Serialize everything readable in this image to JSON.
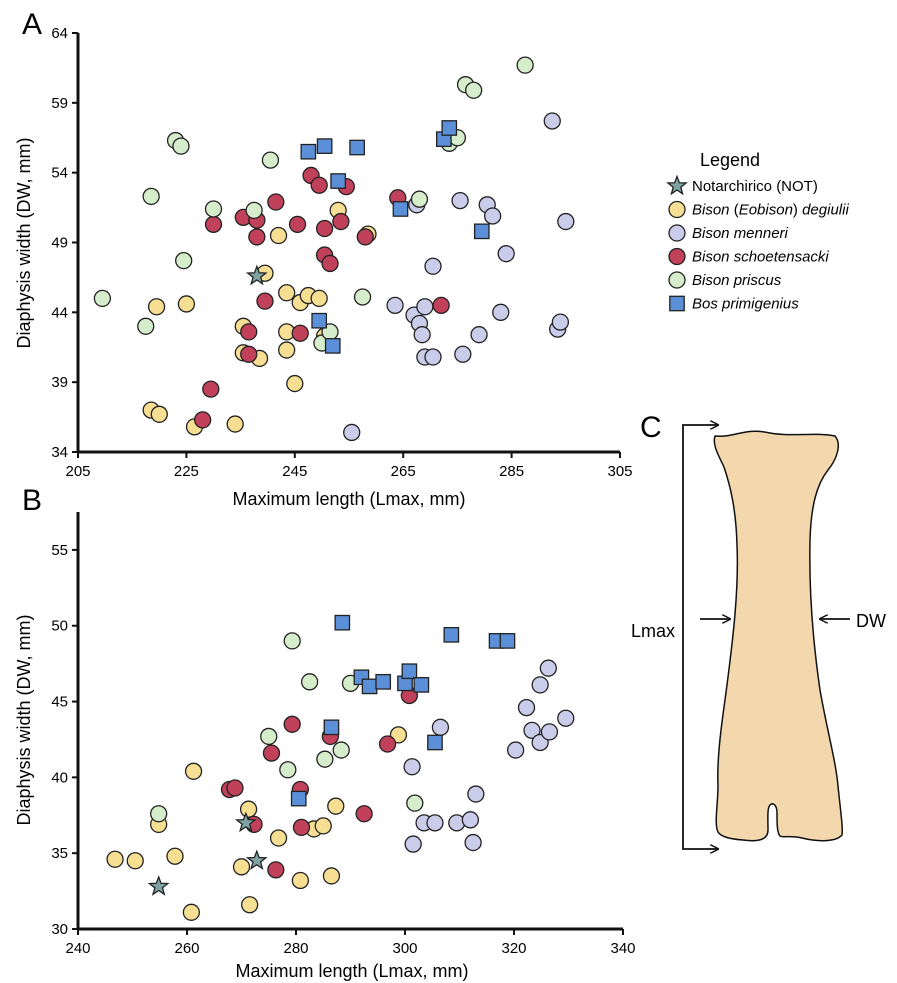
{
  "panels": [
    {
      "letter": "A"
    },
    {
      "letter": "B"
    },
    {
      "letter": "C"
    }
  ],
  "legend": {
    "title": "Legend",
    "entries": [
      {
        "key": "not",
        "marker": "star",
        "color": "#7fa3a3",
        "parts": [
          {
            "text": "Notarchirico (NOT)",
            "italic": false
          }
        ]
      },
      {
        "key": "deg",
        "marker": "circle",
        "color": "#f6df93",
        "parts": [
          {
            "text": "Bison",
            "italic": true
          },
          {
            "text": " (",
            "italic": false
          },
          {
            "text": "Eobison",
            "italic": true
          },
          {
            "text": ") ",
            "italic": false
          },
          {
            "text": "degiulii",
            "italic": true
          }
        ]
      },
      {
        "key": "men",
        "marker": "circle",
        "color": "#c9cdea",
        "parts": [
          {
            "text": "Bison menneri",
            "italic": true
          }
        ]
      },
      {
        "key": "sch",
        "marker": "circle",
        "color": "#c2415a",
        "parts": [
          {
            "text": "Bison schoetensacki",
            "italic": true
          }
        ]
      },
      {
        "key": "pri",
        "marker": "circle",
        "color": "#d5edcb",
        "parts": [
          {
            "text": "Bison priscus",
            "italic": true
          }
        ]
      },
      {
        "key": "bos",
        "marker": "square",
        "color": "#5b8fd7",
        "parts": [
          {
            "text": "Bos primigenius",
            "italic": true
          }
        ]
      }
    ]
  },
  "diagram_c": {
    "lmax_label": "Lmax",
    "dw_label": "DW"
  },
  "chart_data": [
    {
      "type": "scatter",
      "panel": "A",
      "xlabel": "Maximum length (Lmax, mm)",
      "ylabel": "Diaphysis width (DW, mm)",
      "xlim": [
        205,
        305
      ],
      "ylim": [
        34,
        64
      ],
      "xticks": [
        205,
        225,
        245,
        265,
        285,
        305
      ],
      "yticks": [
        34,
        39,
        44,
        49,
        54,
        59,
        64
      ],
      "series": [
        {
          "key": "not",
          "points": [
            [
              238,
              46.6
            ]
          ]
        },
        {
          "key": "deg",
          "points": [
            [
              218.5,
              37
            ],
            [
              220,
              36.7
            ],
            [
              219.5,
              44.4
            ],
            [
              225,
              44.6
            ],
            [
              226.5,
              35.8
            ],
            [
              234,
              36
            ],
            [
              235.5,
              43
            ],
            [
              235.5,
              41.1
            ],
            [
              238.5,
              40.7
            ],
            [
              239.5,
              46.8
            ],
            [
              242,
              49.5
            ],
            [
              243.5,
              42.6
            ],
            [
              243.5,
              41.3
            ],
            [
              243.5,
              45.4
            ],
            [
              245,
              38.9
            ],
            [
              246,
              44.7
            ],
            [
              247.5,
              45.2
            ],
            [
              249.5,
              45
            ],
            [
              250.5,
              42.3
            ],
            [
              253,
              51.3
            ],
            [
              258.5,
              49.6
            ]
          ]
        },
        {
          "key": "men",
          "points": [
            [
              255.5,
              35.4
            ],
            [
              263.5,
              44.5
            ],
            [
              267,
              43.8
            ],
            [
              267.5,
              51.7
            ],
            [
              268,
              43.2
            ],
            [
              268.5,
              42.4
            ],
            [
              269,
              44.4
            ],
            [
              269,
              40.8
            ],
            [
              270.5,
              40.8
            ],
            [
              270.5,
              47.3
            ],
            [
              275.5,
              52
            ],
            [
              276,
              41
            ],
            [
              279,
              42.4
            ],
            [
              280.5,
              51.7
            ],
            [
              281.5,
              50.9
            ],
            [
              283,
              44
            ],
            [
              284,
              48.2
            ],
            [
              292.5,
              57.7
            ],
            [
              293.5,
              42.8
            ],
            [
              294,
              43.3
            ],
            [
              295,
              50.5
            ]
          ]
        },
        {
          "key": "sch",
          "points": [
            [
              228,
              36.3
            ],
            [
              229.5,
              38.5
            ],
            [
              230,
              50.3
            ],
            [
              235.5,
              50.8
            ],
            [
              236.5,
              42.6
            ],
            [
              236.5,
              41
            ],
            [
              238,
              50.6
            ],
            [
              238,
              49.4
            ],
            [
              239.5,
              44.8
            ],
            [
              241.5,
              51.9
            ],
            [
              245.5,
              50.3
            ],
            [
              246,
              42.5
            ],
            [
              248,
              53.8
            ],
            [
              249.5,
              53.1
            ],
            [
              250.5,
              50
            ],
            [
              250.5,
              48.1
            ],
            [
              251.5,
              47.5
            ],
            [
              253.5,
              50.5
            ],
            [
              254.5,
              53
            ],
            [
              258,
              49.4
            ],
            [
              264,
              52.2
            ],
            [
              272,
              44.5
            ]
          ]
        },
        {
          "key": "pri",
          "points": [
            [
              209.5,
              45
            ],
            [
              217.5,
              43
            ],
            [
              218.5,
              52.3
            ],
            [
              223,
              56.3
            ],
            [
              224,
              55.9
            ],
            [
              224.5,
              47.7
            ],
            [
              230,
              51.4
            ],
            [
              237.5,
              51.3
            ],
            [
              240.5,
              54.9
            ],
            [
              250,
              41.8
            ],
            [
              251.5,
              42.6
            ],
            [
              257.5,
              45.1
            ],
            [
              268,
              52.1
            ],
            [
              273.5,
              56.1
            ],
            [
              275,
              56.5
            ],
            [
              276.5,
              60.3
            ],
            [
              278,
              59.9
            ],
            [
              287.5,
              61.7
            ]
          ]
        },
        {
          "key": "bos",
          "points": [
            [
              249.5,
              43.4
            ],
            [
              247.5,
              55.5
            ],
            [
              250.5,
              55.9
            ],
            [
              252,
              41.6
            ],
            [
              253,
              53.4
            ],
            [
              256.5,
              55.8
            ],
            [
              264.5,
              51.4
            ],
            [
              272.5,
              56.4
            ],
            [
              273.5,
              57.2
            ],
            [
              279.5,
              49.8
            ]
          ]
        }
      ]
    },
    {
      "type": "scatter",
      "panel": "B",
      "xlabel": "Maximum length (Lmax, mm)",
      "ylabel": "Diaphysis width (DW, mm)",
      "xlim": [
        240,
        340
      ],
      "ylim": [
        30,
        57.5
      ],
      "xticks": [
        240,
        260,
        280,
        300,
        320,
        340
      ],
      "yticks": [
        30,
        35,
        40,
        45,
        50,
        55
      ],
      "series": [
        {
          "key": "not",
          "points": [
            [
              254.8,
              32.8
            ],
            [
              270.8,
              37
            ],
            [
              272.8,
              34.5
            ]
          ]
        },
        {
          "key": "deg",
          "points": [
            [
              246.8,
              34.6
            ],
            [
              250.5,
              34.5
            ],
            [
              254.8,
              36.9
            ],
            [
              257.8,
              34.8
            ],
            [
              260.8,
              31.1
            ],
            [
              261.2,
              40.4
            ],
            [
              270,
              34.1
            ],
            [
              271.5,
              31.6
            ],
            [
              271.3,
              37.9
            ],
            [
              276.8,
              36
            ],
            [
              280.8,
              33.2
            ],
            [
              283.3,
              36.6
            ],
            [
              285,
              36.8
            ],
            [
              286.5,
              33.5
            ],
            [
              287.3,
              38.1
            ],
            [
              298.8,
              42.8
            ]
          ]
        },
        {
          "key": "men",
          "points": [
            [
              301.5,
              35.6
            ],
            [
              301.3,
              40.7
            ],
            [
              303.5,
              37
            ],
            [
              305.5,
              37
            ],
            [
              306.5,
              43.3
            ],
            [
              309.5,
              37
            ],
            [
              312.5,
              35.7
            ],
            [
              312,
              37.2
            ],
            [
              313,
              38.9
            ],
            [
              320.3,
              41.8
            ],
            [
              322.3,
              44.6
            ],
            [
              323.3,
              43.1
            ],
            [
              324.8,
              42.3
            ],
            [
              324.8,
              46.1
            ],
            [
              326.3,
              47.2
            ],
            [
              326.5,
              43
            ],
            [
              329.5,
              43.9
            ]
          ]
        },
        {
          "key": "sch",
          "points": [
            [
              267.8,
              39.2
            ],
            [
              268.8,
              39.3
            ],
            [
              272.3,
              36.9
            ],
            [
              275.5,
              41.6
            ],
            [
              276.3,
              33.9
            ],
            [
              279.3,
              43.5
            ],
            [
              280.8,
              39.2
            ],
            [
              281,
              36.7
            ],
            [
              286.3,
              42.7
            ],
            [
              292.5,
              37.6
            ],
            [
              296.8,
              42.2
            ],
            [
              300.8,
              45.4
            ]
          ]
        },
        {
          "key": "pri",
          "points": [
            [
              254.8,
              37.6
            ],
            [
              275,
              42.7
            ],
            [
              278.5,
              40.5
            ],
            [
              279.3,
              49
            ],
            [
              282.5,
              46.3
            ],
            [
              285.3,
              41.2
            ],
            [
              288.3,
              41.8
            ],
            [
              290,
              46.2
            ],
            [
              301.8,
              38.3
            ]
          ]
        },
        {
          "key": "bos",
          "points": [
            [
              280.5,
              38.6
            ],
            [
              286.5,
              43.3
            ],
            [
              288.5,
              50.2
            ],
            [
              292,
              46.6
            ],
            [
              293.5,
              46
            ],
            [
              296,
              46.3
            ],
            [
              300,
              46.2
            ],
            [
              300.8,
              47
            ],
            [
              303,
              46.1
            ],
            [
              305.5,
              42.3
            ],
            [
              308.5,
              49.4
            ],
            [
              316.8,
              49
            ],
            [
              318.8,
              49
            ]
          ]
        }
      ]
    }
  ]
}
